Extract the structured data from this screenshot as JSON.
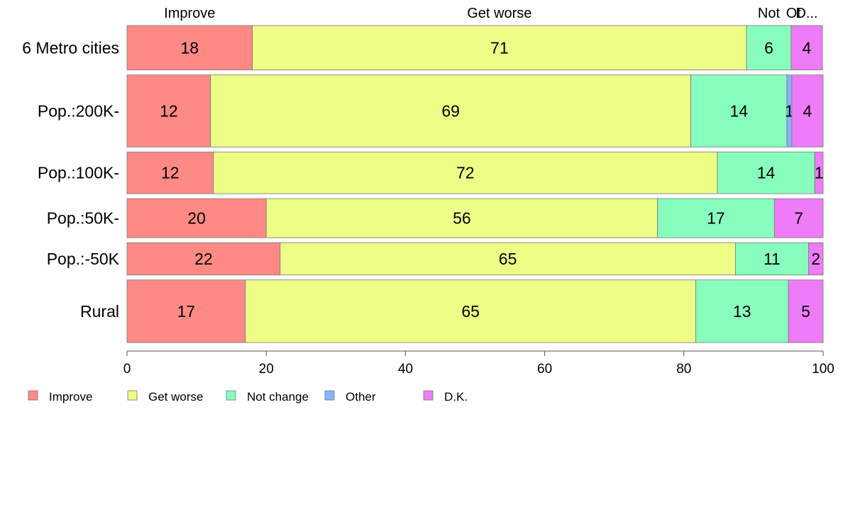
{
  "chart_data": {
    "type": "bar",
    "orientation": "horizontal",
    "stacked": true,
    "categories": [
      "6 Metro cities",
      "Pop.:200K-",
      "Pop.:100K-",
      "Pop.:50K-",
      "Pop.:-50K",
      "Rural"
    ],
    "column_relative_widths": [
      0.66,
      1.07,
      0.62,
      0.58,
      0.48,
      0.93
    ],
    "series": [
      {
        "name": "Improve",
        "color": "#FF8A85",
        "values": [
          18,
          12,
          12.4,
          20,
          22,
          17
        ]
      },
      {
        "name": "Get worse",
        "color": "#EDFD86",
        "values": [
          71,
          69,
          72.4,
          56.2,
          65.4,
          64.7
        ]
      },
      {
        "name": "Not change",
        "color": "#88FEBE",
        "values": [
          6.4,
          13.8,
          14,
          16.8,
          10.5,
          13.3
        ]
      },
      {
        "name": "Other",
        "color": "#86B4FB",
        "values": [
          0,
          0.7,
          0,
          0,
          0,
          0
        ]
      },
      {
        "name": "D.K.",
        "color": "#EE7BF7",
        "values": [
          4.5,
          4.5,
          1.2,
          7,
          2.1,
          5
        ]
      }
    ],
    "segment_labels": [
      [
        "18",
        "71",
        "6",
        "",
        "4"
      ],
      [
        "12",
        "69",
        "14",
        "1",
        "4"
      ],
      [
        "12",
        "72",
        "14",
        "",
        "1"
      ],
      [
        "20",
        "56",
        "17",
        "",
        "7"
      ],
      [
        "22",
        "65",
        "11",
        "",
        "2"
      ],
      [
        "17",
        "65",
        "13",
        "",
        "5"
      ]
    ],
    "top_labels": [
      "Improve",
      "Get worse",
      "Not",
      "Ot",
      "D..."
    ],
    "xlim": [
      0,
      100
    ],
    "xticks": [
      "0",
      "20",
      "40",
      "60",
      "80",
      "100"
    ],
    "xlabel": "",
    "ylabel": "",
    "legend_position": "bottom",
    "grid": false
  }
}
